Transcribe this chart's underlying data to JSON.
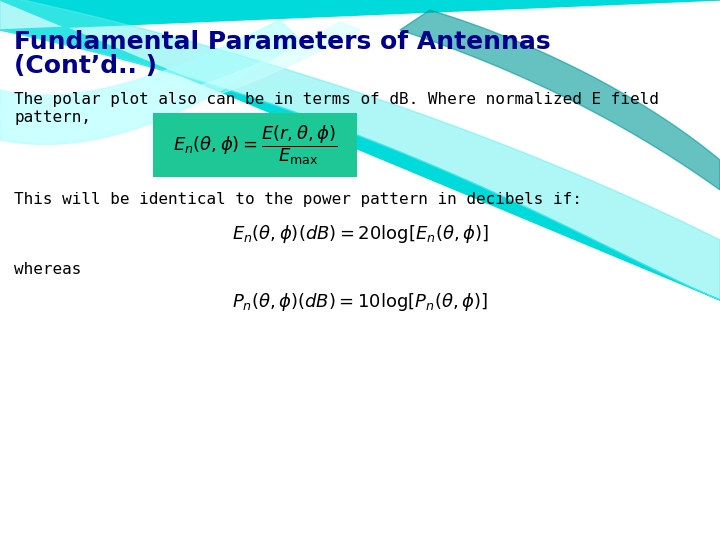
{
  "title_line1": "Fundamental Parameters of Antennas",
  "title_line2": "(Cont’d.. )",
  "title_color": "#00008B",
  "title_fontsize": 18,
  "title_fontweight": "bold",
  "bg_color": "#ffffff",
  "body_text1_line1": "The polar plot also can be in terms of dB. Where normalized E field",
  "body_text1_line2": "pattern,",
  "body_text2": "This will be identical to the power pattern in decibels if:",
  "body_text3": "whereas",
  "formula1_bg": "#1DC896",
  "body_fontsize": 11.5,
  "text_color": "#000000",
  "cyan_main": "#00DEDE",
  "cyan_light": "#55EEEE",
  "cyan_mid": "#00C8C8",
  "white": "#ffffff"
}
